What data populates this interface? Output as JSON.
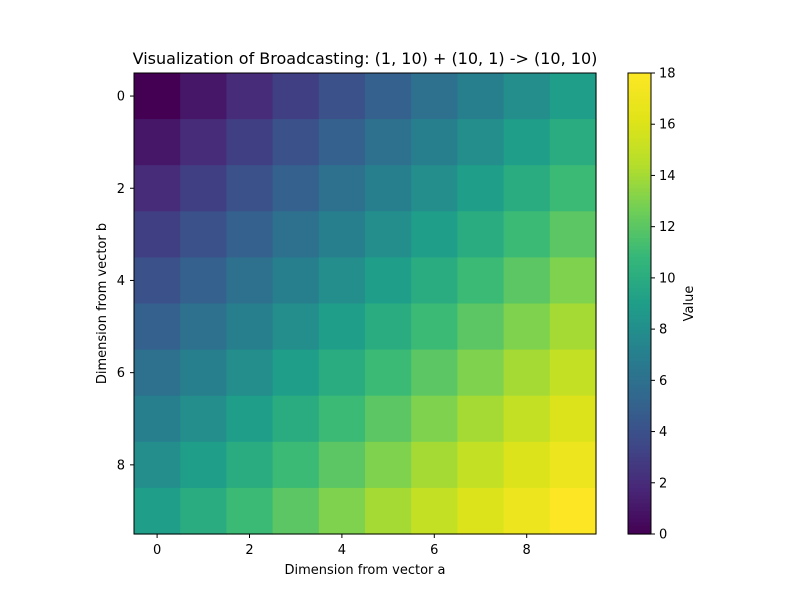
{
  "chart_data": {
    "type": "heatmap",
    "title": "Visualization of Broadcasting: (1, 10) + (10, 1) -> (10, 10)",
    "xlabel": "Dimension from vector a",
    "ylabel": "Dimension from vector b",
    "x_ticks": [
      "0",
      "2",
      "4",
      "6",
      "8"
    ],
    "y_ticks": [
      "0",
      "2",
      "4",
      "6",
      "8"
    ],
    "colorbar": {
      "label": "Value",
      "ticks": [
        "0",
        "2",
        "4",
        "6",
        "8",
        "10",
        "12",
        "14",
        "16",
        "18"
      ],
      "range": [
        0,
        18
      ],
      "colormap": "viridis"
    },
    "values": [
      [
        0,
        1,
        2,
        3,
        4,
        5,
        6,
        7,
        8,
        9
      ],
      [
        1,
        2,
        3,
        4,
        5,
        6,
        7,
        8,
        9,
        10
      ],
      [
        2,
        3,
        4,
        5,
        6,
        7,
        8,
        9,
        10,
        11
      ],
      [
        3,
        4,
        5,
        6,
        7,
        8,
        9,
        10,
        11,
        12
      ],
      [
        4,
        5,
        6,
        7,
        8,
        9,
        10,
        11,
        12,
        13
      ],
      [
        5,
        6,
        7,
        8,
        9,
        10,
        11,
        12,
        13,
        14
      ],
      [
        6,
        7,
        8,
        9,
        10,
        11,
        12,
        13,
        14,
        15
      ],
      [
        7,
        8,
        9,
        10,
        11,
        12,
        13,
        14,
        15,
        16
      ],
      [
        8,
        9,
        10,
        11,
        12,
        13,
        14,
        15,
        16,
        17
      ],
      [
        9,
        10,
        11,
        12,
        13,
        14,
        15,
        16,
        17,
        18
      ]
    ]
  }
}
